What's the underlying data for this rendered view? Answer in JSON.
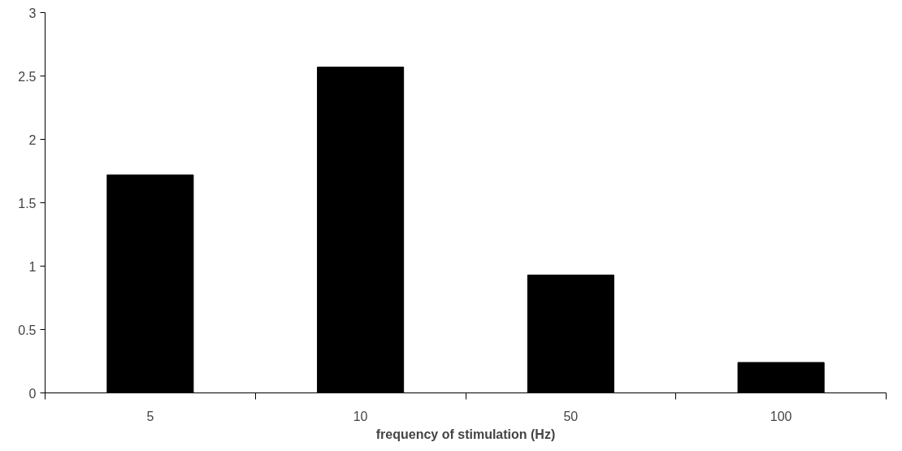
{
  "chart_data": {
    "type": "bar",
    "xlabel": "frequency of stimulation (Hz)",
    "categories": [
      "5",
      "10",
      "50",
      "100"
    ],
    "values": [
      1.72,
      2.57,
      0.93,
      0.24
    ],
    "color": "#000000",
    "ylim": [
      0,
      3
    ],
    "yticks": [
      0,
      0.5,
      1,
      1.5,
      2,
      2.5,
      3
    ],
    "grid": false
  }
}
